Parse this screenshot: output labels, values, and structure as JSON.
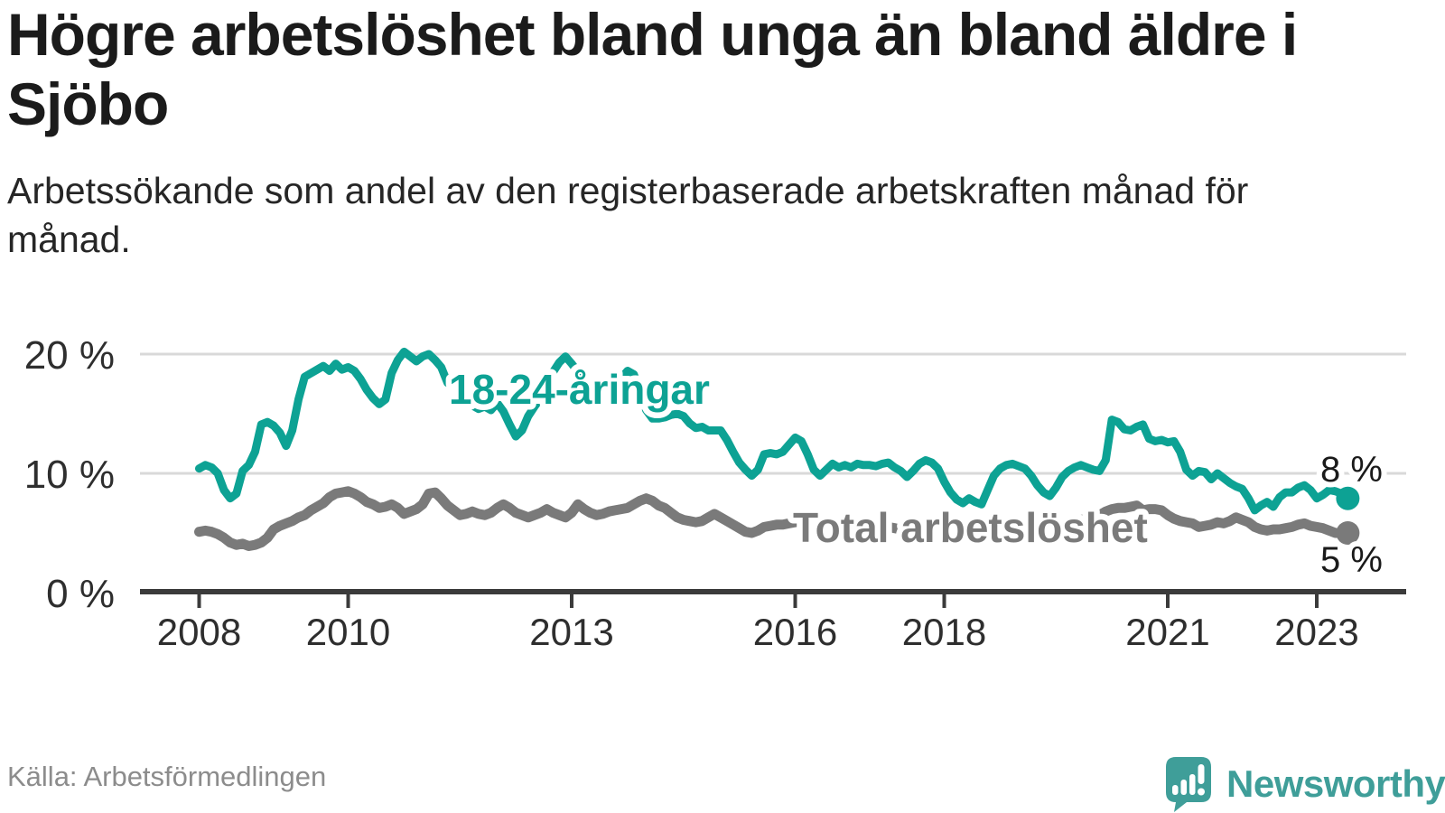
{
  "header": {
    "title": "Högre arbetslöshet bland unga än bland äldre i Sjöbo",
    "subtitle": "Arbetssökande som andel av den registerbaserade arbetskraften månad för månad."
  },
  "footer": {
    "source": "Källa: Arbetsförmedlingen",
    "brand": "Newsworthy"
  },
  "colors": {
    "youth_line": "#0da294",
    "total_line": "#7a7a7a",
    "grid": "#d9d9d9",
    "axis": "#3b3b3b",
    "tick_label": "#2e2e2e",
    "end_label": "#1a1a1a",
    "brand_teal": "#3f9e99",
    "source_gray": "#8c8c8c"
  },
  "chart_data": {
    "type": "line",
    "title": "Högre arbetslöshet bland unga än bland äldre i Sjöbo",
    "subtitle": "Arbetssökande som andel av den registerbaserade arbetskraften månad för månad.",
    "unit": "%",
    "x_start_year": 2008,
    "points_per_year": 12,
    "x_end": "2023-06",
    "x_ticks": [
      2008,
      2010,
      2013,
      2016,
      2018,
      2021,
      2023
    ],
    "x_tick_labels": [
      "2008",
      "2010",
      "2013",
      "2016",
      "2018",
      "2021",
      "2023"
    ],
    "y_ticks": [
      0,
      10,
      20
    ],
    "y_tick_labels": [
      "0 %",
      "10 %",
      "20 %"
    ],
    "ylim": [
      0,
      21.5
    ],
    "grid": "horizontal",
    "legend_position": "inline",
    "series": [
      {
        "name": "18-24-åringar",
        "color": "#0da294",
        "end_label": "8 %",
        "values": [
          10.4,
          10.7,
          10.5,
          10.0,
          8.6,
          7.9,
          8.3,
          10.2,
          10.7,
          11.8,
          14.1,
          14.3,
          14.0,
          13.4,
          12.3,
          13.6,
          16.2,
          18.1,
          18.4,
          18.7,
          19.0,
          18.6,
          19.2,
          18.7,
          18.9,
          18.6,
          17.9,
          17.0,
          16.3,
          15.8,
          16.2,
          18.4,
          19.5,
          20.2,
          19.8,
          19.4,
          19.8,
          20.0,
          19.5,
          18.9,
          17.6,
          18.1,
          17.1,
          16.6,
          15.7,
          15.4,
          15.6,
          15.3,
          15.9,
          15.2,
          14.1,
          13.1,
          13.6,
          14.8,
          15.6,
          16.3,
          17.4,
          18.5,
          19.3,
          19.8,
          19.2,
          18.5,
          17.8,
          17.2,
          16.6,
          16.3,
          16.6,
          17.3,
          18.0,
          18.6,
          18.3,
          16.9,
          15.3,
          14.6,
          14.6,
          14.7,
          14.9,
          15.0,
          14.8,
          14.2,
          13.8,
          13.9,
          13.6,
          13.6,
          13.6,
          12.8,
          11.8,
          10.9,
          10.3,
          9.8,
          10.3,
          11.6,
          11.7,
          11.6,
          11.8,
          12.4,
          13.0,
          12.7,
          11.6,
          10.3,
          9.8,
          10.3,
          10.8,
          10.5,
          10.7,
          10.5,
          10.8,
          10.7,
          10.7,
          10.6,
          10.8,
          10.9,
          10.5,
          10.2,
          9.7,
          10.2,
          10.8,
          11.1,
          10.9,
          10.4,
          9.3,
          8.4,
          7.8,
          7.5,
          7.9,
          7.6,
          7.4,
          8.6,
          9.8,
          10.4,
          10.7,
          10.8,
          10.6,
          10.4,
          9.8,
          9.0,
          8.4,
          8.1,
          8.8,
          9.7,
          10.2,
          10.5,
          10.7,
          10.5,
          10.3,
          10.2,
          11.1,
          14.5,
          14.3,
          13.7,
          13.6,
          13.9,
          14.1,
          12.9,
          12.7,
          12.8,
          12.6,
          12.7,
          11.8,
          10.3,
          9.8,
          10.2,
          10.1,
          9.5,
          10.0,
          9.6,
          9.2,
          8.9,
          8.7,
          7.9,
          6.9,
          7.3,
          7.6,
          7.2,
          8.0,
          8.4,
          8.4,
          8.8,
          9.0,
          8.6,
          7.9,
          8.2,
          8.6,
          8.5,
          8.3,
          7.9
        ]
      },
      {
        "name": "Total arbetslöshet",
        "color": "#7a7a7a",
        "end_label": "5 %",
        "values": [
          5.1,
          5.2,
          5.1,
          4.9,
          4.6,
          4.2,
          4.0,
          4.1,
          3.9,
          4.0,
          4.2,
          4.6,
          5.3,
          5.6,
          5.8,
          6.0,
          6.3,
          6.5,
          6.9,
          7.2,
          7.5,
          8.0,
          8.3,
          8.4,
          8.5,
          8.3,
          8.0,
          7.6,
          7.4,
          7.1,
          7.2,
          7.4,
          7.1,
          6.6,
          6.8,
          7.0,
          7.4,
          8.3,
          8.4,
          7.9,
          7.3,
          6.9,
          6.5,
          6.6,
          6.8,
          6.6,
          6.5,
          6.7,
          7.1,
          7.4,
          7.1,
          6.7,
          6.5,
          6.3,
          6.5,
          6.7,
          7.0,
          6.7,
          6.5,
          6.3,
          6.7,
          7.4,
          7.0,
          6.7,
          6.5,
          6.6,
          6.8,
          6.9,
          7.0,
          7.1,
          7.4,
          7.7,
          7.9,
          7.7,
          7.3,
          7.1,
          6.7,
          6.3,
          6.1,
          6.0,
          5.9,
          6.0,
          6.3,
          6.6,
          6.3,
          6.0,
          5.7,
          5.4,
          5.1,
          5.0,
          5.2,
          5.5,
          5.6,
          5.7,
          5.7,
          5.8,
          5.9,
          6.0,
          5.8,
          5.7,
          5.6,
          5.5,
          5.6,
          5.8,
          5.7,
          5.6,
          5.7,
          5.8,
          5.9,
          5.8,
          5.7,
          5.5,
          5.4,
          5.3,
          5.5,
          5.6,
          5.5,
          5.4,
          5.3,
          5.4,
          5.5,
          5.4,
          5.3,
          5.2,
          5.1,
          5.0,
          5.2,
          5.4,
          5.3,
          5.4,
          5.5,
          5.6,
          5.7,
          5.6,
          5.5,
          5.4,
          5.5,
          5.7,
          5.9,
          5.8,
          5.9,
          6.0,
          6.1,
          6.2,
          6.4,
          6.5,
          6.8,
          7.0,
          7.1,
          7.1,
          7.2,
          7.3,
          6.9,
          7.0,
          7.0,
          6.9,
          6.5,
          6.2,
          6.0,
          5.9,
          5.8,
          5.5,
          5.6,
          5.7,
          5.9,
          5.8,
          6.0,
          6.3,
          6.1,
          5.9,
          5.5,
          5.3,
          5.2,
          5.3,
          5.3,
          5.4,
          5.5,
          5.7,
          5.8,
          5.6,
          5.5,
          5.4,
          5.2,
          5.0,
          5.0,
          5.0
        ]
      }
    ]
  }
}
